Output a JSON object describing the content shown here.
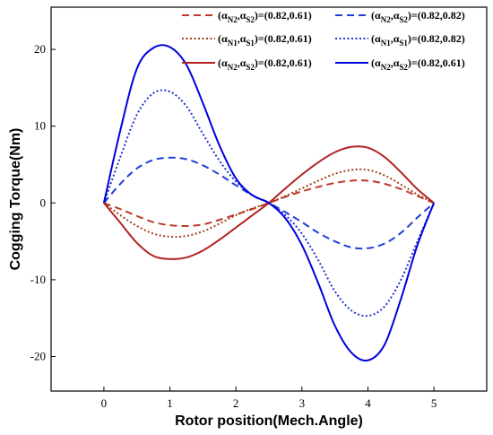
{
  "chart_data": {
    "type": "line",
    "title": "",
    "xlabel": "Rotor position(Mech.Angle)",
    "ylabel": "Cogging Torque(Nm)",
    "xlim": [
      -0.8,
      5.8
    ],
    "ylim": [
      -24.5,
      25.5
    ],
    "xticks": [
      0,
      1,
      2,
      3,
      4,
      5
    ],
    "yticks": [
      -20,
      -10,
      0,
      10,
      20
    ],
    "xtick_labels": [
      "0",
      "1",
      "2",
      "3",
      "4",
      "5"
    ],
    "ytick_labels": [
      "-20",
      "-10",
      "0",
      "10",
      "20"
    ],
    "grid": false,
    "legend_position": "top-right",
    "series": [
      {
        "legend": {
          "pre": "(α",
          "sub1": "N2",
          "mid": ",α",
          "sub2": "S2",
          "post": ")=(0.82,0.61)"
        },
        "color": "#C0392B",
        "dash": "8,5",
        "x": [
          0,
          0.25,
          0.5,
          0.75,
          1.0,
          1.25,
          1.5,
          1.75,
          2.0,
          2.25,
          2.5,
          2.75,
          3.0,
          3.25,
          3.5,
          3.75,
          4.0,
          4.25,
          4.5,
          4.75,
          5.0
        ],
        "y": [
          0,
          -0.8,
          -1.7,
          -2.5,
          -2.9,
          -3.0,
          -2.8,
          -2.2,
          -1.5,
          -0.8,
          0,
          0.8,
          1.5,
          2.1,
          2.6,
          2.9,
          2.9,
          2.5,
          1.8,
          0.9,
          0
        ]
      },
      {
        "legend": {
          "pre": "(α",
          "sub1": "N2",
          "mid": ",α",
          "sub2": "S2",
          "post": ")=(0.82,0.82)"
        },
        "color": "#1F3FD6",
        "dash": "8,5",
        "x": [
          0,
          0.25,
          0.5,
          0.75,
          1.0,
          1.25,
          1.5,
          1.75,
          2.0,
          2.25,
          2.5,
          2.75,
          3.0,
          3.25,
          3.5,
          3.75,
          4.0,
          4.25,
          4.5,
          4.75,
          5.0
        ],
        "y": [
          0,
          2.5,
          4.5,
          5.6,
          5.9,
          5.7,
          4.9,
          3.7,
          2.3,
          1.0,
          0,
          -1.2,
          -2.5,
          -3.9,
          -5.0,
          -5.8,
          -5.9,
          -5.3,
          -3.9,
          -1.9,
          0
        ]
      },
      {
        "legend": {
          "pre": "(α",
          "sub1": "N1",
          "mid": ",α",
          "sub2": "S1",
          "post": ")=(0.82,0.61)"
        },
        "color": "#A0421E",
        "dash": "2,2.5",
        "x": [
          0,
          0.25,
          0.5,
          0.75,
          1.0,
          1.25,
          1.5,
          1.75,
          2.0,
          2.25,
          2.5,
          2.75,
          3.0,
          3.25,
          3.5,
          3.75,
          4.0,
          4.25,
          4.5,
          4.75,
          5.0
        ],
        "y": [
          0,
          -1.6,
          -3.0,
          -4.0,
          -4.4,
          -4.3,
          -3.7,
          -2.7,
          -1.6,
          -0.7,
          0,
          0.9,
          1.9,
          2.9,
          3.8,
          4.3,
          4.3,
          3.6,
          2.4,
          1.1,
          0
        ]
      },
      {
        "legend": {
          "pre": "(α",
          "sub1": "N1",
          "mid": ",α",
          "sub2": "S1",
          "post": ")=(0.82,0.82)"
        },
        "color": "#2233CC",
        "dash": "2,2.5",
        "x": [
          0,
          0.25,
          0.5,
          0.75,
          1.0,
          1.25,
          1.5,
          1.75,
          2.0,
          2.25,
          2.5,
          2.75,
          3.0,
          3.25,
          3.5,
          3.75,
          4.0,
          4.25,
          4.5,
          4.75,
          5.0
        ],
        "y": [
          0,
          6.0,
          11.5,
          14.3,
          14.5,
          12.6,
          9.0,
          5.5,
          2.8,
          1.0,
          0,
          -1.6,
          -4.0,
          -7.5,
          -11.5,
          -14.0,
          -14.7,
          -13.5,
          -10.0,
          -5.0,
          0
        ]
      },
      {
        "legend": {
          "pre": "(α",
          "sub1": "N2",
          "mid": ",α",
          "sub2": "S2",
          "post": ")=(0.82,0.61)"
        },
        "color": "#B22222",
        "dash": "",
        "x": [
          0,
          0.25,
          0.5,
          0.75,
          1.0,
          1.25,
          1.5,
          1.75,
          2.0,
          2.25,
          2.5,
          2.75,
          3.0,
          3.25,
          3.5,
          3.75,
          4.0,
          4.25,
          4.5,
          4.75,
          5.0
        ],
        "y": [
          0,
          -2.6,
          -5.2,
          -6.9,
          -7.3,
          -7.1,
          -6.2,
          -4.8,
          -3.2,
          -1.6,
          0,
          1.9,
          3.7,
          5.3,
          6.6,
          7.3,
          7.2,
          6.0,
          4.0,
          1.8,
          0
        ]
      },
      {
        "legend": {
          "pre": "(α",
          "sub1": "N2",
          "mid": ",α",
          "sub2": "S2",
          "post": ")=(0.82,0.61)"
        },
        "color": "#0000DD",
        "dash": "",
        "x": [
          0,
          0.25,
          0.5,
          0.75,
          1.0,
          1.25,
          1.5,
          1.75,
          2.0,
          2.25,
          2.5,
          2.75,
          3.0,
          3.25,
          3.5,
          3.75,
          4.0,
          4.25,
          4.5,
          4.75,
          5.0
        ],
        "y": [
          0,
          9.5,
          17.5,
          20.2,
          20.3,
          18.0,
          13.0,
          7.5,
          3.2,
          1.0,
          0,
          -2.0,
          -5.5,
          -10.5,
          -16.0,
          -19.5,
          -20.5,
          -18.5,
          -12.5,
          -5.5,
          0
        ]
      }
    ]
  }
}
